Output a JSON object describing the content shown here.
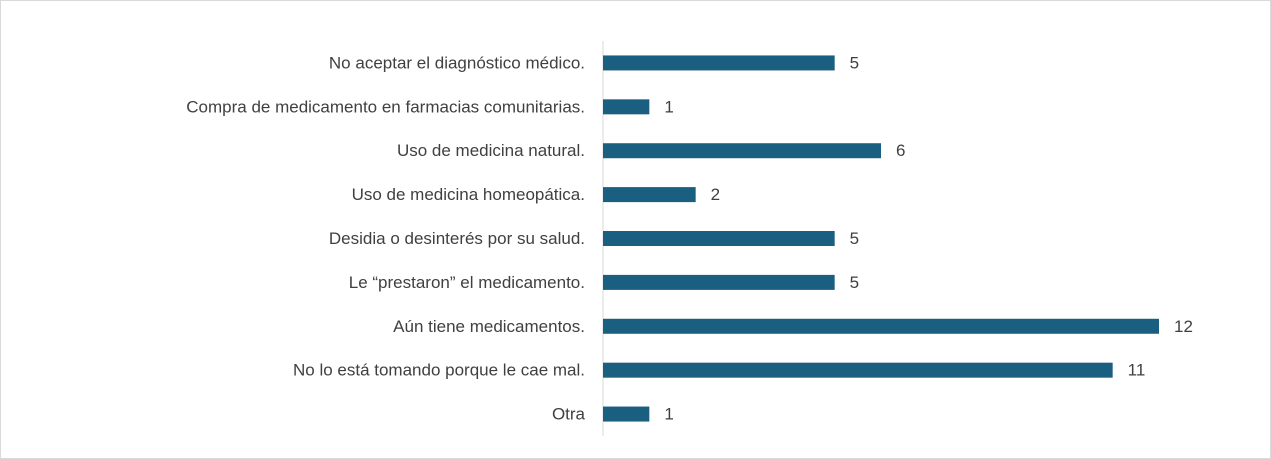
{
  "chart_data": {
    "type": "bar",
    "orientation": "horizontal",
    "categories": [
      "No aceptar el diagnóstico médico.",
      "Compra de medicamento en farmacias comunitarias.",
      "Uso de medicina natural.",
      "Uso de medicina homeopática.",
      "Desidia o desinterés por su salud.",
      "Le “prestaron” el medicamento.",
      "Aún tiene medicamentos.",
      "No lo está tomando porque le cae mal.",
      "Otra"
    ],
    "values": [
      5,
      1,
      6,
      2,
      5,
      5,
      12,
      11,
      1
    ],
    "color": "#1a5e80",
    "xlim": [
      0,
      12
    ]
  }
}
